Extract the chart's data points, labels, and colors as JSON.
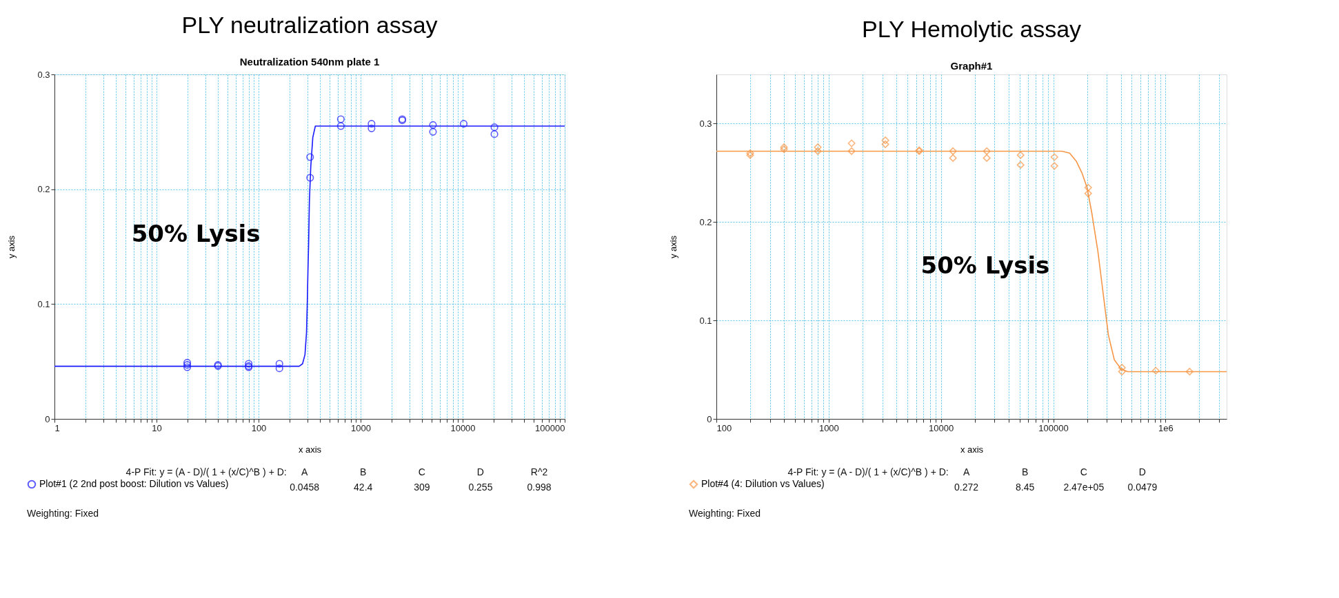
{
  "chart_data": [
    {
      "type": "scatter",
      "title": "PLY neutralization assay",
      "subtitle": "Neutralization  540nm plate 1",
      "xlabel": "x axis",
      "ylabel": "y axis",
      "log": "x",
      "grid": true,
      "legend": "bottom left",
      "xlim": [
        1,
        100000
      ],
      "ylim": [
        0,
        0.3
      ],
      "xticks": [
        1,
        {
          "value": 2,
          "label": null
        },
        {
          "value": 3,
          "label": null
        },
        {
          "value": 4,
          "label": null
        },
        {
          "value": 5,
          "label": null
        },
        {
          "value": 6,
          "label": null
        },
        {
          "value": 7,
          "label": null
        },
        {
          "value": 8,
          "label": null
        },
        {
          "value": 9,
          "label": null
        },
        10,
        {
          "value": 20,
          "label": null
        },
        {
          "value": 30,
          "label": null
        },
        {
          "value": 40,
          "label": null
        },
        {
          "value": 50,
          "label": null
        },
        {
          "value": 60,
          "label": null
        },
        {
          "value": 70,
          "label": null
        },
        {
          "value": 80,
          "label": null
        },
        {
          "value": 90,
          "label": null
        },
        100,
        {
          "value": 200,
          "label": null
        },
        {
          "value": 300,
          "label": null
        },
        {
          "value": 400,
          "label": null
        },
        {
          "value": 500,
          "label": null
        },
        {
          "value": 600,
          "label": null
        },
        {
          "value": 700,
          "label": null
        },
        {
          "value": 800,
          "label": null
        },
        {
          "value": 900,
          "label": null
        },
        1000,
        {
          "value": 2000,
          "label": null
        },
        {
          "value": 3000,
          "label": null
        },
        {
          "value": 4000,
          "label": null
        },
        {
          "value": 5000,
          "label": null
        },
        {
          "value": 6000,
          "label": null
        },
        {
          "value": 7000,
          "label": null
        },
        {
          "value": 8000,
          "label": null
        },
        {
          "value": 9000,
          "label": null
        },
        10000,
        {
          "value": 20000,
          "label": null
        },
        {
          "value": 30000,
          "label": null
        },
        {
          "value": 40000,
          "label": null
        },
        {
          "value": 50000,
          "label": null
        },
        {
          "value": 60000,
          "label": null
        },
        {
          "value": 70000,
          "label": null
        },
        {
          "value": 80000,
          "label": null
        },
        {
          "value": 90000,
          "label": null
        },
        100000
      ],
      "yticks": [
        0,
        0.1,
        0.2,
        0.3
      ],
      "series": [
        {
          "name": "Plot#1 (2 2nd post boost: Dilution vs Values)",
          "marker": "circle",
          "color": "#1a1aff",
          "x": [
            20,
            20,
            20,
            40,
            40,
            80,
            80,
            80,
            160,
            160,
            320,
            320,
            640,
            640,
            1280,
            1280,
            2560,
            2560,
            5120,
            5120,
            10240,
            20480,
            20480
          ],
          "values": [
            0.049,
            0.047,
            0.045,
            0.047,
            0.046,
            0.048,
            0.046,
            0.045,
            0.048,
            0.044,
            0.228,
            0.21,
            0.261,
            0.255,
            0.257,
            0.253,
            0.261,
            0.26,
            0.256,
            0.25,
            0.257,
            0.254,
            0.248
          ]
        },
        {
          "type": "line",
          "marker": "none",
          "line_style": "solid",
          "color": "#1a1aff",
          "x": [
            1,
            250,
            270,
            285,
            295,
            300,
            305,
            309,
            315,
            325,
            340,
            360,
            100000
          ],
          "values": [
            0.0458,
            0.0458,
            0.048,
            0.056,
            0.075,
            0.1,
            0.13,
            0.15,
            0.19,
            0.22,
            0.245,
            0.255,
            0.255
          ]
        }
      ],
      "annotations": [
        {
          "text": "50% Lysis",
          "x": 309,
          "y": 0.16
        },
        "4-P Fit: y = (A - D)/( 1 + (x/C)^B ) + D:",
        "A",
        "B",
        "C",
        "D",
        "R^2",
        "0.0458",
        "42.4",
        "309",
        "0.255",
        "0.998",
        "Weighting: Fixed"
      ]
    },
    {
      "type": "scatter",
      "title": "PLY Hemolytic assay",
      "subtitle": "Graph#1",
      "xlabel": "x axis",
      "ylabel": "y axis",
      "log": "x",
      "grid": true,
      "legend": "bottom left",
      "xlim": [
        100,
        3500000
      ],
      "ylim": [
        0,
        0.35
      ],
      "xticks": [
        100,
        {
          "value": 200,
          "label": null
        },
        {
          "value": 300,
          "label": null
        },
        {
          "value": 400,
          "label": null
        },
        {
          "value": 500,
          "label": null
        },
        {
          "value": 600,
          "label": null
        },
        {
          "value": 700,
          "label": null
        },
        {
          "value": 800,
          "label": null
        },
        {
          "value": 900,
          "label": null
        },
        1000,
        {
          "value": 2000,
          "label": null
        },
        {
          "value": 3000,
          "label": null
        },
        {
          "value": 4000,
          "label": null
        },
        {
          "value": 5000,
          "label": null
        },
        {
          "value": 6000,
          "label": null
        },
        {
          "value": 7000,
          "label": null
        },
        {
          "value": 8000,
          "label": null
        },
        {
          "value": 9000,
          "label": null
        },
        10000,
        {
          "value": 20000,
          "label": null
        },
        {
          "value": 30000,
          "label": null
        },
        {
          "value": 40000,
          "label": null
        },
        {
          "value": 50000,
          "label": null
        },
        {
          "value": 60000,
          "label": null
        },
        {
          "value": 70000,
          "label": null
        },
        {
          "value": 80000,
          "label": null
        },
        {
          "value": 90000,
          "label": null
        },
        100000,
        {
          "value": 200000,
          "label": null
        },
        {
          "value": 300000,
          "label": null
        },
        {
          "value": 400000,
          "label": null
        },
        {
          "value": 500000,
          "label": null
        },
        {
          "value": 600000,
          "label": null
        },
        {
          "value": 700000,
          "label": null
        },
        {
          "value": 800000,
          "label": null
        },
        {
          "value": 900000,
          "label": null
        },
        {
          "value": 1000000,
          "label": "1e6"
        },
        {
          "value": 2000000,
          "label": null
        },
        {
          "value": 3000000,
          "label": null
        }
      ],
      "yticks": [
        0,
        0.1,
        0.2,
        0.3
      ],
      "series": [
        {
          "name": "Plot#4 (4: Dilution vs Values)",
          "marker": "diamond",
          "color": "#f79646",
          "x": [
            200,
            200,
            400,
            400,
            800,
            800,
            1600,
            1600,
            3200,
            3200,
            6400,
            6400,
            12800,
            12800,
            25600,
            25600,
            51200,
            51200,
            102400,
            102400,
            204800,
            204800,
            409600,
            409600,
            819200,
            1638400
          ],
          "values": [
            0.27,
            0.268,
            0.276,
            0.274,
            0.276,
            0.272,
            0.28,
            0.272,
            0.283,
            0.279,
            0.272,
            0.273,
            0.272,
            0.265,
            0.272,
            0.265,
            0.268,
            0.258,
            0.266,
            0.257,
            0.235,
            0.229,
            0.052,
            0.048,
            0.049,
            0.048
          ]
        },
        {
          "type": "line",
          "marker": "none",
          "line_style": "solid",
          "color": "#f79646",
          "x": [
            100,
            120000,
            140000,
            160000,
            180000,
            200000,
            220000,
            250000,
            280000,
            310000,
            350000,
            400000,
            460000,
            3500000
          ],
          "values": [
            0.272,
            0.272,
            0.27,
            0.262,
            0.25,
            0.235,
            0.21,
            0.17,
            0.125,
            0.085,
            0.06,
            0.051,
            0.048,
            0.048
          ]
        }
      ],
      "annotations": [
        {
          "text": "50% Lysis",
          "x": 250000,
          "y": 0.155
        },
        "4-P Fit: y = (A - D)/( 1 + (x/C)^B ) + D:",
        "A",
        "B",
        "C",
        "D",
        "0.272",
        "8.45",
        "2.47e+05",
        "0.0479",
        "Weighting: Fixed"
      ]
    }
  ]
}
